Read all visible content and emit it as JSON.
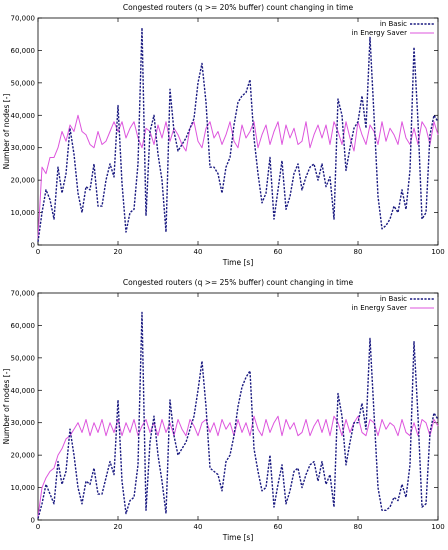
{
  "chart_data": [
    {
      "type": "line",
      "title": "Congested routers (q >= 20% buffer) count changing in time",
      "xlabel": "Time [s]",
      "ylabel": "Number of nodes [-]",
      "xlim": [
        0,
        100
      ],
      "ylim": [
        0,
        70000
      ],
      "xticks": [
        0,
        20,
        40,
        60,
        80,
        100
      ],
      "yticks": [
        0,
        10000,
        20000,
        30000,
        40000,
        50000,
        60000,
        70000
      ],
      "xtick_labels": [
        "0",
        "20",
        "40",
        "60",
        "80",
        "100"
      ],
      "ytick_labels": [
        "0",
        "10,000",
        "20,000",
        "30,000",
        "40,000",
        "50,000",
        "60,000",
        "70,000"
      ],
      "legend_position": "top-right",
      "grid": false,
      "series": [
        {
          "name": "in Basic",
          "color": "#1a1a80",
          "dash": "dashed",
          "x": [
            0,
            1,
            2,
            3,
            4,
            5,
            6,
            7,
            8,
            9,
            10,
            11,
            12,
            13,
            14,
            15,
            16,
            17,
            18,
            19,
            20,
            21,
            22,
            23,
            24,
            25,
            26,
            27,
            28,
            29,
            30,
            31,
            32,
            33,
            34,
            35,
            36,
            37,
            38,
            39,
            40,
            41,
            42,
            43,
            44,
            45,
            46,
            47,
            48,
            49,
            50,
            51,
            52,
            53,
            54,
            55,
            56,
            57,
            58,
            59,
            60,
            61,
            62,
            63,
            64,
            65,
            66,
            67,
            68,
            69,
            70,
            71,
            72,
            73,
            74,
            75,
            76,
            77,
            78,
            79,
            80,
            81,
            82,
            83,
            84,
            85,
            86,
            87,
            88,
            89,
            90,
            91,
            92,
            93,
            94,
            95,
            96,
            97,
            98,
            99,
            100
          ],
          "values": [
            1000,
            10000,
            17000,
            14000,
            8000,
            24000,
            16000,
            22000,
            36000,
            28000,
            16000,
            10000,
            18000,
            17000,
            25000,
            12000,
            12000,
            20000,
            25000,
            21000,
            43000,
            19000,
            4000,
            10000,
            11000,
            25000,
            67000,
            9000,
            35000,
            40000,
            28000,
            20000,
            4000,
            48000,
            35000,
            29000,
            31000,
            33000,
            36000,
            39000,
            50000,
            56000,
            44000,
            24000,
            24000,
            22000,
            16000,
            24000,
            27000,
            37000,
            44000,
            46000,
            47000,
            51000,
            33000,
            22000,
            13000,
            16000,
            27000,
            8000,
            17000,
            26000,
            11000,
            15000,
            22000,
            25000,
            17000,
            21000,
            24000,
            25000,
            20000,
            25000,
            18000,
            21000,
            8000,
            45000,
            40000,
            23000,
            30000,
            36000,
            38000,
            46000,
            36000,
            64000,
            40000,
            15000,
            5000,
            6000,
            8000,
            12000,
            10000,
            17000,
            11000,
            23000,
            61000,
            38000,
            8000,
            10000,
            34000,
            40000,
            38000
          ]
        },
        {
          "name": "in Energy Saver",
          "color": "#dd55dd",
          "dash": "solid",
          "x": [
            0,
            1,
            2,
            3,
            4,
            5,
            6,
            7,
            8,
            9,
            10,
            11,
            12,
            13,
            14,
            15,
            16,
            17,
            18,
            19,
            20,
            21,
            22,
            23,
            24,
            25,
            26,
            27,
            28,
            29,
            30,
            31,
            32,
            33,
            34,
            35,
            36,
            37,
            38,
            39,
            40,
            41,
            42,
            43,
            44,
            45,
            46,
            47,
            48,
            49,
            50,
            51,
            52,
            53,
            54,
            55,
            56,
            57,
            58,
            59,
            60,
            61,
            62,
            63,
            64,
            65,
            66,
            67,
            68,
            69,
            70,
            71,
            72,
            73,
            74,
            75,
            76,
            77,
            78,
            79,
            80,
            81,
            82,
            83,
            84,
            85,
            86,
            87,
            88,
            89,
            90,
            91,
            92,
            93,
            94,
            95,
            96,
            97,
            98,
            99,
            100
          ],
          "values": [
            2000,
            24000,
            22000,
            27000,
            27000,
            30000,
            35000,
            32000,
            37000,
            35000,
            40000,
            35000,
            34000,
            31000,
            30000,
            35000,
            31000,
            32000,
            35000,
            38000,
            35000,
            38000,
            33000,
            36000,
            38000,
            33000,
            30000,
            36000,
            35000,
            31000,
            37000,
            33000,
            38000,
            32000,
            36000,
            34000,
            31000,
            29000,
            36000,
            38000,
            32000,
            30000,
            36000,
            38000,
            33000,
            35000,
            31000,
            34000,
            38000,
            32000,
            30000,
            37000,
            33000,
            35000,
            38000,
            30000,
            34000,
            37000,
            31000,
            35000,
            38000,
            31000,
            37000,
            33000,
            36000,
            31000,
            32000,
            38000,
            30000,
            34000,
            37000,
            33000,
            37000,
            31000,
            38000,
            35000,
            31000,
            38000,
            33000,
            29000,
            38000,
            34000,
            31000,
            37000,
            35000,
            31000,
            38000,
            32000,
            36000,
            34000,
            31000,
            38000,
            33000,
            31000,
            36000,
            31000,
            38000,
            36000,
            31000,
            38000,
            34000
          ]
        }
      ]
    },
    {
      "type": "line",
      "title": "Congested routers (q >= 25% buffer) count changing in time",
      "xlabel": "Time [s]",
      "ylabel": "Number of nodes [-]",
      "xlim": [
        0,
        100
      ],
      "ylim": [
        0,
        70000
      ],
      "xticks": [
        0,
        20,
        40,
        60,
        80,
        100
      ],
      "yticks": [
        0,
        10000,
        20000,
        30000,
        40000,
        50000,
        60000,
        70000
      ],
      "xtick_labels": [
        "0",
        "20",
        "40",
        "60",
        "80",
        "100"
      ],
      "ytick_labels": [
        "0",
        "10,000",
        "20,000",
        "30,000",
        "40,000",
        "50,000",
        "60,000",
        "70,000"
      ],
      "legend_position": "top-right",
      "grid": false,
      "series": [
        {
          "name": "in Basic",
          "color": "#1a1a80",
          "dash": "dashed",
          "x": [
            0,
            1,
            2,
            3,
            4,
            5,
            6,
            7,
            8,
            9,
            10,
            11,
            12,
            13,
            14,
            15,
            16,
            17,
            18,
            19,
            20,
            21,
            22,
            23,
            24,
            25,
            26,
            27,
            28,
            29,
            30,
            31,
            32,
            33,
            34,
            35,
            36,
            37,
            38,
            39,
            40,
            41,
            42,
            43,
            44,
            45,
            46,
            47,
            48,
            49,
            50,
            51,
            52,
            53,
            54,
            55,
            56,
            57,
            58,
            59,
            60,
            61,
            62,
            63,
            64,
            65,
            66,
            67,
            68,
            69,
            70,
            71,
            72,
            73,
            74,
            75,
            76,
            77,
            78,
            79,
            80,
            81,
            82,
            83,
            84,
            85,
            86,
            87,
            88,
            89,
            90,
            91,
            92,
            93,
            94,
            95,
            96,
            97,
            98,
            99,
            100
          ],
          "values": [
            500,
            5000,
            11000,
            8000,
            5000,
            18000,
            11000,
            15000,
            28000,
            20000,
            10000,
            5000,
            12000,
            11000,
            16000,
            8000,
            8000,
            13000,
            18000,
            14000,
            37000,
            12000,
            2000,
            6000,
            7000,
            17000,
            64000,
            3000,
            24000,
            32000,
            20000,
            12000,
            2000,
            37000,
            26000,
            20000,
            22000,
            24000,
            28000,
            32000,
            40000,
            49000,
            35000,
            16000,
            15000,
            14000,
            9000,
            18000,
            20000,
            26000,
            35000,
            41000,
            44000,
            46000,
            22000,
            15000,
            9000,
            10000,
            20000,
            4000,
            11000,
            17000,
            5000,
            9000,
            15000,
            16000,
            10000,
            14000,
            17000,
            18000,
            12000,
            18000,
            11000,
            14000,
            4000,
            39000,
            32000,
            17000,
            24000,
            30000,
            30000,
            36000,
            28000,
            56000,
            33000,
            10000,
            3000,
            3000,
            4000,
            7000,
            6000,
            11000,
            7000,
            17000,
            55000,
            32000,
            4000,
            5000,
            27000,
            33000,
            31000
          ]
        },
        {
          "name": "in Energy Saver",
          "color": "#dd55dd",
          "dash": "solid",
          "x": [
            0,
            1,
            2,
            3,
            4,
            5,
            6,
            7,
            8,
            9,
            10,
            11,
            12,
            13,
            14,
            15,
            16,
            17,
            18,
            19,
            20,
            21,
            22,
            23,
            24,
            25,
            26,
            27,
            28,
            29,
            30,
            31,
            32,
            33,
            34,
            35,
            36,
            37,
            38,
            39,
            40,
            41,
            42,
            43,
            44,
            45,
            46,
            47,
            48,
            49,
            50,
            51,
            52,
            53,
            54,
            55,
            56,
            57,
            58,
            59,
            60,
            61,
            62,
            63,
            64,
            65,
            66,
            67,
            68,
            69,
            70,
            71,
            72,
            73,
            74,
            75,
            76,
            77,
            78,
            79,
            80,
            81,
            82,
            83,
            84,
            85,
            86,
            87,
            88,
            89,
            90,
            91,
            92,
            93,
            94,
            95,
            96,
            97,
            98,
            99,
            100
          ],
          "values": [
            1000,
            10000,
            13000,
            15000,
            16000,
            20000,
            22000,
            25000,
            26000,
            28000,
            30000,
            27000,
            31000,
            26000,
            30000,
            27000,
            31000,
            26000,
            30000,
            27000,
            31000,
            26000,
            30000,
            27000,
            31000,
            26000,
            29000,
            31000,
            27000,
            30000,
            26000,
            31000,
            27000,
            30000,
            26000,
            31000,
            28000,
            26000,
            31000,
            29000,
            26000,
            30000,
            31000,
            27000,
            30000,
            26000,
            31000,
            28000,
            30000,
            26000,
            31000,
            27000,
            30000,
            26000,
            32000,
            28000,
            26000,
            31000,
            27000,
            30000,
            32000,
            26000,
            31000,
            28000,
            30000,
            26000,
            27000,
            31000,
            26000,
            29000,
            31000,
            27000,
            31000,
            26000,
            32000,
            30000,
            26000,
            31000,
            27000,
            30000,
            32000,
            27000,
            26000,
            31000,
            30000,
            26000,
            31000,
            28000,
            30000,
            29000,
            26000,
            31000,
            27000,
            26000,
            30000,
            26000,
            31000,
            30000,
            26000,
            31000,
            29000
          ]
        }
      ]
    }
  ]
}
